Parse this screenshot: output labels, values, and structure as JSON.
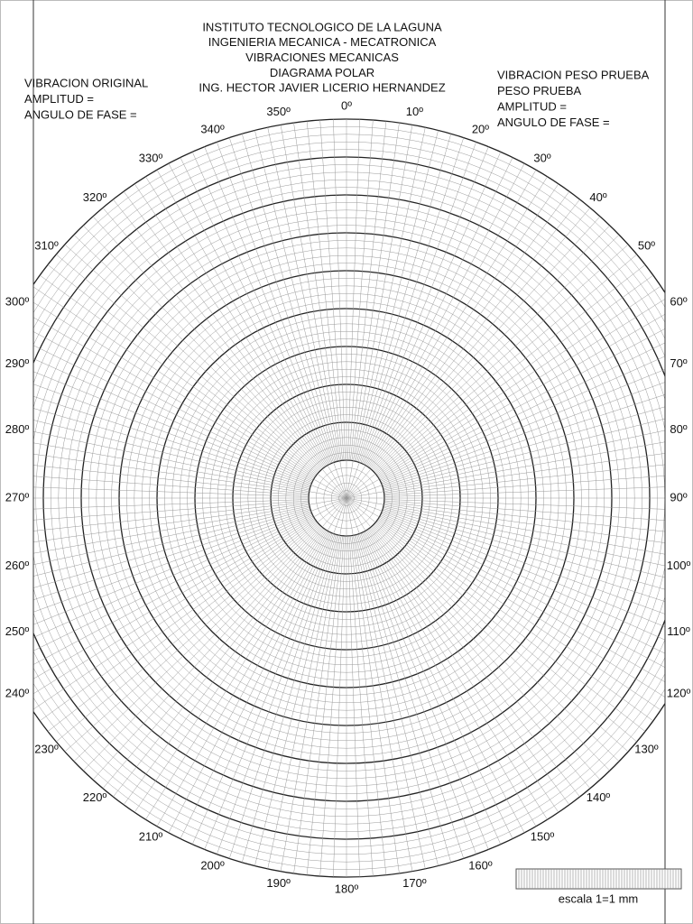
{
  "header": {
    "lines": [
      "INSTITUTO TECNOLOGICO DE LA LAGUNA",
      "INGENIERIA MECANICA - MECATRONICA",
      "VIBRACIONES MECANICAS",
      "DIAGRAMA POLAR",
      "ING. HECTOR JAVIER LICERIO HERNANDEZ"
    ]
  },
  "left_box": {
    "lines": [
      "VIBRACION ORIGINAL",
      "AMPLITUD =",
      "ANGULO DE FASE ="
    ]
  },
  "right_box": {
    "lines": [
      "VIBRACION PESO PRUEBA",
      "PESO PRUEBA",
      "AMPLITUD =",
      "ANGULO DE FASE ="
    ]
  },
  "angle_labels": [
    "0º",
    "10º",
    "20º",
    "30º",
    "40º",
    "50º",
    "60º",
    "70º",
    "80º",
    "90º",
    "100º",
    "110º",
    "120º",
    "130º",
    "140º",
    "150º",
    "160º",
    "170º",
    "180º",
    "190º",
    "200º",
    "210º",
    "220º",
    "230º",
    "240º",
    "250º",
    "260º",
    "270º",
    "280º",
    "290º",
    "300º",
    "310º",
    "320º",
    "330º",
    "340º",
    "350º"
  ],
  "scale": {
    "label": "escala 1=1 mm"
  }
}
